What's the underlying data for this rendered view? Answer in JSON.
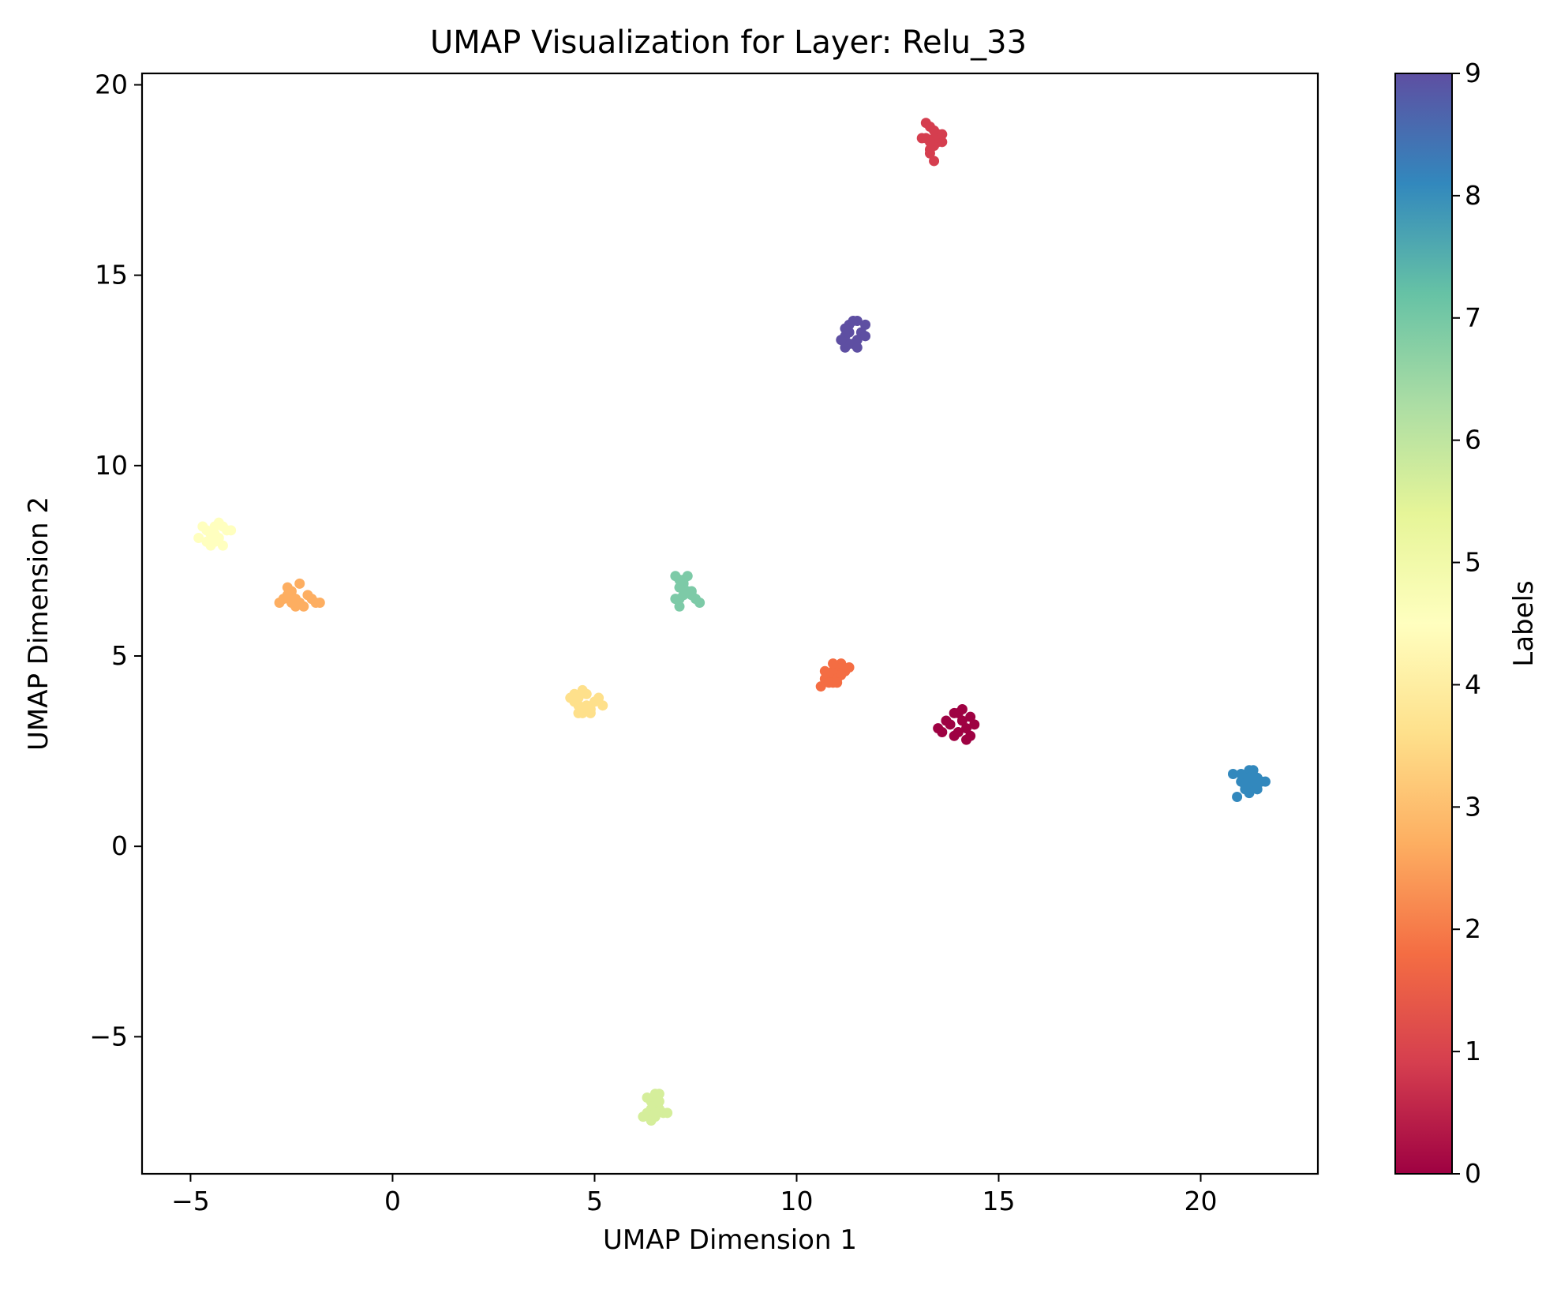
{
  "chart_data": {
    "type": "scatter",
    "title": "UMAP Visualization for Layer: Relu_33",
    "xlabel": "UMAP Dimension 1",
    "ylabel": "UMAP Dimension 2",
    "xlim": [
      -6.2,
      22.9
    ],
    "ylim": [
      -8.6,
      20.3
    ],
    "xticks": [
      -5,
      0,
      5,
      10,
      15,
      20
    ],
    "yticks": [
      -5,
      0,
      5,
      10,
      15,
      20
    ],
    "xtick_labels": [
      "−5",
      "0",
      "5",
      "10",
      "15",
      "20"
    ],
    "ytick_labels": [
      "−5",
      "0",
      "5",
      "10",
      "15",
      "20"
    ],
    "grid": false,
    "colormap": "Spectral",
    "colorbar": {
      "label": "Labels",
      "range": [
        0,
        9
      ],
      "ticks": [
        0,
        1,
        2,
        3,
        4,
        5,
        6,
        7,
        8,
        9
      ],
      "tick_labels": [
        "0",
        "1",
        "2",
        "3",
        "4",
        "5",
        "6",
        "7",
        "8",
        "9"
      ],
      "stops": [
        "#9e0142",
        "#d53e4f",
        "#f46d43",
        "#fdae61",
        "#fee08b",
        "#ffffbf",
        "#e6f598",
        "#abdda4",
        "#66c2a5",
        "#3288bd",
        "#5e4fa2"
      ]
    },
    "series": [
      {
        "label": 0,
        "color": "#9e0142",
        "points": [
          [
            13.8,
            3.2
          ],
          [
            14.0,
            3.5
          ],
          [
            14.2,
            3.1
          ],
          [
            13.6,
            3.0
          ],
          [
            14.3,
            3.4
          ],
          [
            13.9,
            2.9
          ],
          [
            14.1,
            3.6
          ],
          [
            14.4,
            3.2
          ],
          [
            13.7,
            3.3
          ],
          [
            14.0,
            3.0
          ],
          [
            14.2,
            2.8
          ],
          [
            13.5,
            3.1
          ],
          [
            14.1,
            3.3
          ],
          [
            13.9,
            3.5
          ],
          [
            14.3,
            2.9
          ]
        ]
      },
      {
        "label": 1,
        "color": "#d53e4f",
        "points": [
          [
            13.2,
            18.6
          ],
          [
            13.3,
            18.9
          ],
          [
            13.4,
            18.4
          ],
          [
            13.5,
            18.7
          ],
          [
            13.3,
            18.2
          ],
          [
            13.2,
            19.0
          ],
          [
            13.6,
            18.5
          ],
          [
            13.4,
            18.8
          ],
          [
            13.3,
            18.3
          ],
          [
            13.5,
            18.5
          ],
          [
            13.4,
            18.0
          ],
          [
            13.1,
            18.6
          ],
          [
            13.4,
            18.6
          ],
          [
            13.6,
            18.7
          ],
          [
            13.3,
            18.5
          ]
        ]
      },
      {
        "label": 2,
        "color": "#f46d43",
        "points": [
          [
            10.6,
            4.2
          ],
          [
            10.8,
            4.5
          ],
          [
            11.0,
            4.7
          ],
          [
            10.9,
            4.3
          ],
          [
            11.2,
            4.6
          ],
          [
            10.7,
            4.4
          ],
          [
            11.1,
            4.8
          ],
          [
            10.9,
            4.6
          ],
          [
            11.3,
            4.7
          ],
          [
            10.8,
            4.3
          ],
          [
            11.0,
            4.4
          ],
          [
            10.9,
            4.8
          ],
          [
            11.1,
            4.5
          ],
          [
            10.7,
            4.6
          ],
          [
            11.0,
            4.3
          ]
        ]
      },
      {
        "label": 3,
        "color": "#fdae61",
        "points": [
          [
            -2.7,
            6.5
          ],
          [
            -2.5,
            6.7
          ],
          [
            -2.3,
            6.4
          ],
          [
            -2.1,
            6.6
          ],
          [
            -1.9,
            6.4
          ],
          [
            -2.6,
            6.8
          ],
          [
            -2.4,
            6.5
          ],
          [
            -2.2,
            6.3
          ],
          [
            -2.0,
            6.5
          ],
          [
            -2.5,
            6.4
          ],
          [
            -2.3,
            6.9
          ],
          [
            -1.8,
            6.4
          ],
          [
            -2.6,
            6.6
          ],
          [
            -2.4,
            6.3
          ],
          [
            -2.8,
            6.4
          ]
        ]
      },
      {
        "label": 4,
        "color": "#fee08b",
        "points": [
          [
            4.4,
            3.9
          ],
          [
            4.6,
            3.7
          ],
          [
            4.8,
            4.0
          ],
          [
            4.7,
            3.5
          ],
          [
            5.0,
            3.8
          ],
          [
            4.5,
            4.0
          ],
          [
            4.9,
            3.6
          ],
          [
            5.1,
            3.9
          ],
          [
            4.6,
            3.5
          ],
          [
            4.8,
            3.7
          ],
          [
            5.2,
            3.7
          ],
          [
            4.5,
            3.8
          ],
          [
            4.7,
            4.1
          ],
          [
            4.9,
            3.5
          ],
          [
            4.6,
            3.9
          ]
        ]
      },
      {
        "label": 5,
        "color": "#ffffbf",
        "points": [
          [
            -4.8,
            8.1
          ],
          [
            -4.6,
            8.3
          ],
          [
            -4.4,
            8.2
          ],
          [
            -4.2,
            8.4
          ],
          [
            -4.5,
            7.9
          ],
          [
            -4.3,
            8.5
          ],
          [
            -4.1,
            8.3
          ],
          [
            -4.6,
            8.0
          ],
          [
            -4.4,
            8.4
          ],
          [
            -4.2,
            7.9
          ],
          [
            -4.5,
            8.2
          ],
          [
            -4.3,
            8.1
          ],
          [
            -4.7,
            8.4
          ],
          [
            -4.0,
            8.3
          ],
          [
            -4.4,
            8.0
          ]
        ]
      },
      {
        "label": 6,
        "color": "#d5ee9b",
        "points": [
          [
            6.3,
            -7.0
          ],
          [
            6.4,
            -6.7
          ],
          [
            6.5,
            -6.5
          ],
          [
            6.6,
            -6.9
          ],
          [
            6.4,
            -7.2
          ],
          [
            6.5,
            -6.8
          ],
          [
            6.7,
            -7.0
          ],
          [
            6.3,
            -6.6
          ],
          [
            6.6,
            -6.5
          ],
          [
            6.5,
            -7.1
          ],
          [
            6.4,
            -6.9
          ],
          [
            6.2,
            -7.1
          ],
          [
            6.6,
            -6.7
          ],
          [
            6.8,
            -7.0
          ],
          [
            6.5,
            -7.0
          ]
        ]
      },
      {
        "label": 7,
        "color": "#7dcaa7",
        "points": [
          [
            7.0,
            7.1
          ],
          [
            7.2,
            6.9
          ],
          [
            7.1,
            6.5
          ],
          [
            7.3,
            6.7
          ],
          [
            7.4,
            6.6
          ],
          [
            7.2,
            7.0
          ],
          [
            7.0,
            6.5
          ],
          [
            7.5,
            6.5
          ],
          [
            7.6,
            6.4
          ],
          [
            7.1,
            6.3
          ],
          [
            7.3,
            7.1
          ],
          [
            7.2,
            6.6
          ],
          [
            7.1,
            7.0
          ],
          [
            7.4,
            6.7
          ],
          [
            7.1,
            6.8
          ]
        ]
      },
      {
        "label": 8,
        "color": "#3288bd",
        "points": [
          [
            20.8,
            1.9
          ],
          [
            21.0,
            1.7
          ],
          [
            21.2,
            2.0
          ],
          [
            21.3,
            1.6
          ],
          [
            21.4,
            1.8
          ],
          [
            21.1,
            1.5
          ],
          [
            21.5,
            1.7
          ],
          [
            21.2,
            1.4
          ],
          [
            20.9,
            1.3
          ],
          [
            21.3,
            2.0
          ],
          [
            21.4,
            1.5
          ],
          [
            21.0,
            1.9
          ],
          [
            21.2,
            1.8
          ],
          [
            21.6,
            1.7
          ],
          [
            21.1,
            1.6
          ]
        ]
      },
      {
        "label": 9,
        "color": "#5e4fa2",
        "points": [
          [
            11.2,
            13.4
          ],
          [
            11.3,
            13.7
          ],
          [
            11.5,
            13.8
          ],
          [
            11.4,
            13.2
          ],
          [
            11.6,
            13.5
          ],
          [
            11.2,
            13.1
          ],
          [
            11.5,
            13.3
          ],
          [
            11.3,
            13.5
          ],
          [
            11.7,
            13.7
          ],
          [
            11.4,
            13.8
          ],
          [
            11.2,
            13.6
          ],
          [
            11.7,
            13.4
          ],
          [
            11.3,
            13.2
          ],
          [
            11.5,
            13.1
          ],
          [
            11.1,
            13.3
          ]
        ]
      }
    ]
  }
}
